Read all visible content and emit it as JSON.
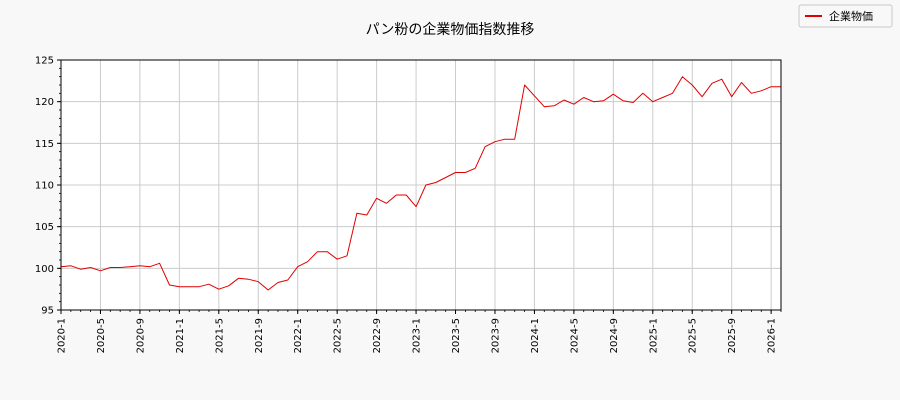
{
  "chart_data": {
    "type": "line",
    "title": "パン粉の企業物価指数推移",
    "xlabel": "",
    "ylabel": "",
    "ylim": [
      95,
      125
    ],
    "y_ticks": [
      "95",
      "100",
      "105",
      "110",
      "115",
      "120",
      "125"
    ],
    "x_ticks": [
      "2020-1",
      "2020-5",
      "2020-9",
      "2021-1",
      "2021-5",
      "2021-9",
      "2022-1",
      "2022-5",
      "2022-9",
      "2023-1",
      "2023-5",
      "2023-9",
      "2024-1",
      "2024-5",
      "2024-9",
      "2025-1",
      "2025-5",
      "2025-9",
      "2026-1"
    ],
    "grid": true,
    "legend_position": "top-right",
    "series": [
      {
        "name": "企業物価",
        "color": "#e00000",
        "x": [
          "2020-1",
          "2020-2",
          "2020-3",
          "2020-4",
          "2020-5",
          "2020-6",
          "2020-7",
          "2020-8",
          "2020-9",
          "2020-10",
          "2020-11",
          "2020-12",
          "2021-1",
          "2021-2",
          "2021-3",
          "2021-4",
          "2021-5",
          "2021-6",
          "2021-7",
          "2021-8",
          "2021-9",
          "2021-10",
          "2021-11",
          "2021-12",
          "2022-1",
          "2022-2",
          "2022-3",
          "2022-4",
          "2022-5",
          "2022-6",
          "2022-7",
          "2022-8",
          "2022-9",
          "2022-10",
          "2022-11",
          "2022-12",
          "2023-1",
          "2023-2",
          "2023-3",
          "2023-4",
          "2023-5",
          "2023-6",
          "2023-7",
          "2023-8",
          "2023-9",
          "2023-10",
          "2023-11",
          "2023-12",
          "2024-1",
          "2024-2",
          "2024-3",
          "2024-4",
          "2024-5",
          "2024-6",
          "2024-7",
          "2024-8",
          "2024-9",
          "2024-10",
          "2024-11",
          "2024-12",
          "2025-1",
          "2025-2",
          "2025-3",
          "2025-4",
          "2025-5",
          "2025-6",
          "2025-7",
          "2025-8",
          "2025-9",
          "2025-10",
          "2025-11",
          "2025-12",
          "2026-1",
          "2026-2"
        ],
        "values": [
          100.2,
          100.3,
          99.9,
          100.1,
          99.7,
          100.1,
          100.1,
          100.2,
          100.3,
          100.2,
          100.6,
          98.0,
          97.8,
          97.8,
          97.8,
          98.1,
          97.5,
          97.9,
          98.8,
          98.7,
          98.4,
          97.4,
          98.3,
          98.6,
          100.2,
          100.8,
          102.0,
          102.0,
          101.1,
          101.5,
          106.6,
          106.4,
          108.4,
          107.8,
          108.8,
          108.8,
          107.4,
          110.0,
          110.3,
          110.9,
          111.5,
          111.5,
          112.0,
          114.6,
          115.2,
          115.5,
          115.5,
          122.0,
          120.7,
          119.4,
          119.5,
          120.2,
          119.7,
          120.5,
          120.0,
          120.1,
          120.9,
          120.1,
          119.9,
          121.0,
          120.0,
          120.5,
          121.0,
          123.0,
          122.0,
          120.6,
          122.2,
          122.7,
          120.6,
          122.3,
          121.0,
          121.3,
          121.8,
          121.8
        ]
      }
    ]
  }
}
